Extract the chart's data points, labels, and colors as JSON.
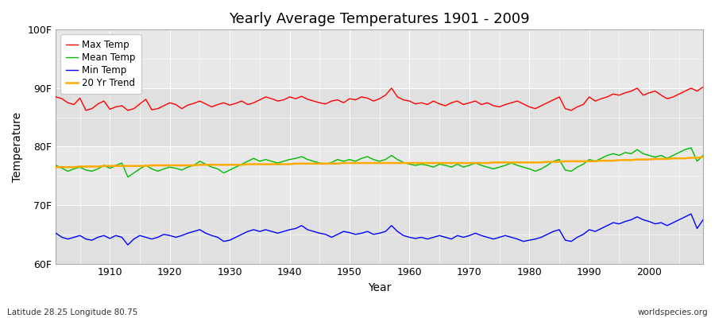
{
  "title": "Yearly Average Temperatures 1901 - 2009",
  "xlabel": "Year",
  "ylabel": "Temperature",
  "year_start": 1901,
  "year_end": 2009,
  "ylim": [
    60,
    100
  ],
  "yticks": [
    60,
    70,
    80,
    90,
    100
  ],
  "ytick_labels": [
    "60F",
    "70F",
    "80F",
    "90F",
    "100F"
  ],
  "xticks": [
    1910,
    1920,
    1930,
    1940,
    1950,
    1960,
    1970,
    1980,
    1990,
    2000
  ],
  "figure_bg_color": "#ffffff",
  "plot_bg_color": "#e8e8e8",
  "grid_color": "#ffffff",
  "band_color_1": "#e0e0e0",
  "band_color_2": "#e8e8e8",
  "max_temp_color": "#ff0000",
  "mean_temp_color": "#00bb00",
  "min_temp_color": "#0000ff",
  "trend_color": "#ffaa00",
  "legend_labels": [
    "Max Temp",
    "Mean Temp",
    "Min Temp",
    "20 Yr Trend"
  ],
  "footnote_left": "Latitude 28.25 Longitude 80.75",
  "footnote_right": "worldspecies.org",
  "max_temp": [
    88.5,
    88.2,
    87.5,
    87.2,
    88.3,
    86.2,
    86.5,
    87.3,
    87.8,
    86.4,
    86.8,
    87.0,
    86.2,
    86.5,
    87.3,
    88.1,
    86.3,
    86.5,
    87.0,
    87.5,
    87.2,
    86.5,
    87.1,
    87.4,
    87.8,
    87.3,
    86.8,
    87.2,
    87.5,
    87.1,
    87.4,
    87.8,
    87.2,
    87.5,
    88.0,
    88.5,
    88.2,
    87.8,
    88.0,
    88.5,
    88.2,
    88.6,
    88.1,
    87.8,
    87.5,
    87.3,
    87.8,
    88.0,
    87.5,
    88.2,
    88.0,
    88.5,
    88.3,
    87.8,
    88.2,
    88.8,
    90.0,
    88.5,
    88.0,
    87.8,
    87.3,
    87.5,
    87.2,
    87.8,
    87.3,
    87.0,
    87.5,
    87.8,
    87.2,
    87.5,
    87.8,
    87.2,
    87.5,
    87.0,
    86.8,
    87.2,
    87.5,
    87.8,
    87.3,
    86.8,
    86.5,
    87.0,
    87.5,
    88.0,
    88.5,
    86.5,
    86.2,
    86.8,
    87.2,
    88.5,
    87.8,
    88.2,
    88.5,
    89.0,
    88.8,
    89.2,
    89.5,
    90.0,
    88.8,
    89.2,
    89.5,
    88.8,
    88.2,
    88.5,
    89.0,
    89.5,
    90.0,
    89.5,
    90.2
  ],
  "mean_temp": [
    76.8,
    76.3,
    75.8,
    76.2,
    76.5,
    76.0,
    75.8,
    76.2,
    76.8,
    76.3,
    76.8,
    77.2,
    74.8,
    75.5,
    76.2,
    76.8,
    76.2,
    75.8,
    76.2,
    76.5,
    76.3,
    76.0,
    76.5,
    76.8,
    77.5,
    77.0,
    76.5,
    76.2,
    75.5,
    76.0,
    76.5,
    77.0,
    77.5,
    78.0,
    77.5,
    77.8,
    77.5,
    77.2,
    77.5,
    77.8,
    78.0,
    78.3,
    77.8,
    77.5,
    77.2,
    77.0,
    77.3,
    77.8,
    77.5,
    77.8,
    77.5,
    78.0,
    78.3,
    77.8,
    77.5,
    77.8,
    78.5,
    77.8,
    77.3,
    77.0,
    76.8,
    77.0,
    76.8,
    76.5,
    77.0,
    76.8,
    76.5,
    77.0,
    76.5,
    76.8,
    77.2,
    76.8,
    76.5,
    76.2,
    76.5,
    76.8,
    77.2,
    76.8,
    76.5,
    76.2,
    75.8,
    76.2,
    76.8,
    77.5,
    77.8,
    76.0,
    75.8,
    76.5,
    77.0,
    77.8,
    77.5,
    78.0,
    78.5,
    78.8,
    78.5,
    79.0,
    78.8,
    79.5,
    78.8,
    78.5,
    78.2,
    78.5,
    78.0,
    78.5,
    79.0,
    79.5,
    79.8,
    77.5,
    78.5
  ],
  "min_temp": [
    65.2,
    64.5,
    64.2,
    64.5,
    64.8,
    64.2,
    64.0,
    64.5,
    64.8,
    64.3,
    64.8,
    64.5,
    63.2,
    64.2,
    64.8,
    64.5,
    64.2,
    64.5,
    65.0,
    64.8,
    64.5,
    64.8,
    65.2,
    65.5,
    65.8,
    65.2,
    64.8,
    64.5,
    63.8,
    64.0,
    64.5,
    65.0,
    65.5,
    65.8,
    65.5,
    65.8,
    65.5,
    65.2,
    65.5,
    65.8,
    66.0,
    66.5,
    65.8,
    65.5,
    65.2,
    65.0,
    64.5,
    65.0,
    65.5,
    65.3,
    65.0,
    65.2,
    65.5,
    65.0,
    65.2,
    65.5,
    66.5,
    65.5,
    64.8,
    64.5,
    64.3,
    64.5,
    64.2,
    64.5,
    64.8,
    64.5,
    64.2,
    64.8,
    64.5,
    64.8,
    65.2,
    64.8,
    64.5,
    64.2,
    64.5,
    64.8,
    64.5,
    64.2,
    63.8,
    64.0,
    64.2,
    64.5,
    65.0,
    65.5,
    65.8,
    64.0,
    63.8,
    64.5,
    65.0,
    65.8,
    65.5,
    66.0,
    66.5,
    67.0,
    66.8,
    67.2,
    67.5,
    68.0,
    67.5,
    67.2,
    66.8,
    67.0,
    66.5,
    67.0,
    67.5,
    68.0,
    68.5,
    66.0,
    67.5
  ],
  "trend": [
    76.5,
    76.5,
    76.5,
    76.5,
    76.6,
    76.6,
    76.6,
    76.6,
    76.7,
    76.7,
    76.7,
    76.7,
    76.7,
    76.7,
    76.7,
    76.7,
    76.8,
    76.8,
    76.8,
    76.8,
    76.8,
    76.8,
    76.8,
    76.8,
    76.9,
    76.9,
    76.9,
    76.9,
    76.9,
    76.9,
    76.9,
    76.9,
    77.0,
    77.0,
    77.0,
    77.0,
    77.0,
    77.0,
    77.0,
    77.0,
    77.1,
    77.1,
    77.1,
    77.1,
    77.1,
    77.1,
    77.1,
    77.1,
    77.2,
    77.2,
    77.2,
    77.2,
    77.2,
    77.2,
    77.2,
    77.2,
    77.2,
    77.2,
    77.2,
    77.2,
    77.2,
    77.2,
    77.2,
    77.2,
    77.2,
    77.2,
    77.2,
    77.2,
    77.2,
    77.2,
    77.2,
    77.2,
    77.2,
    77.3,
    77.3,
    77.3,
    77.3,
    77.3,
    77.3,
    77.3,
    77.3,
    77.3,
    77.4,
    77.4,
    77.4,
    77.5,
    77.5,
    77.5,
    77.5,
    77.5,
    77.5,
    77.6,
    77.6,
    77.6,
    77.7,
    77.7,
    77.7,
    77.8,
    77.8,
    77.8,
    77.9,
    77.9,
    77.9,
    78.0,
    78.0,
    78.0,
    78.1,
    78.1,
    78.2
  ]
}
